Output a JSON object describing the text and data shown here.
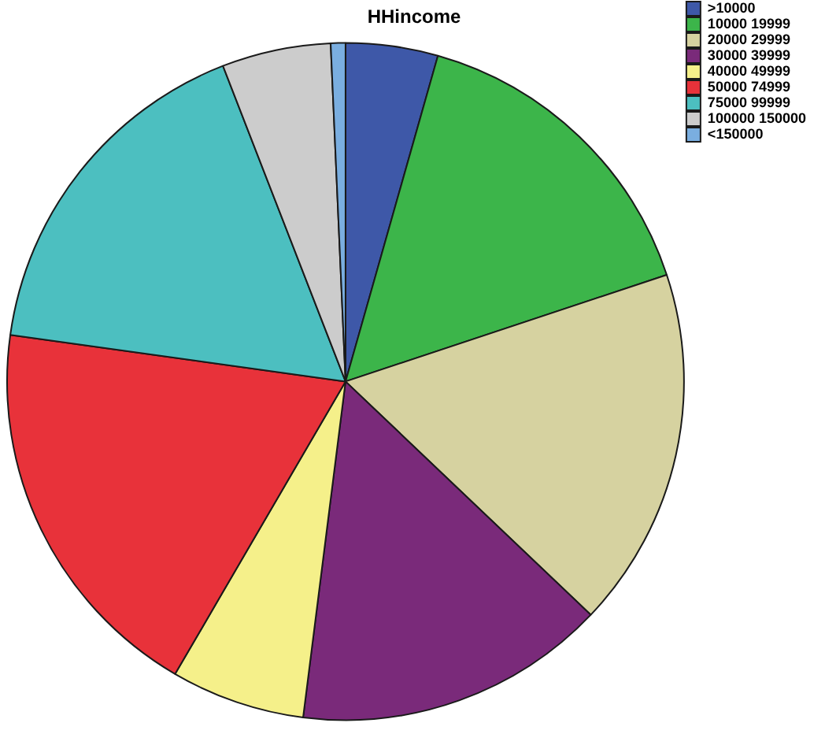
{
  "chart_data": {
    "type": "pie",
    "title": "HHincome",
    "categories": [
      ">10000",
      "10000 19999",
      "20000 29999",
      "30000 39999",
      "40000 49999",
      "50000 74999",
      "75000 99999",
      "100000 150000",
      "<150000"
    ],
    "values": [
      4.4,
      15.5,
      17.2,
      14.9,
      6.4,
      18.8,
      16.9,
      5.2,
      0.7
    ],
    "colors": [
      "#3e58a8",
      "#3cb54a",
      "#d6d2a0",
      "#7a2a7a",
      "#f5f08a",
      "#e8323a",
      "#4cbfc0",
      "#cccccc",
      "#7aaee0"
    ],
    "legend": "top right"
  }
}
